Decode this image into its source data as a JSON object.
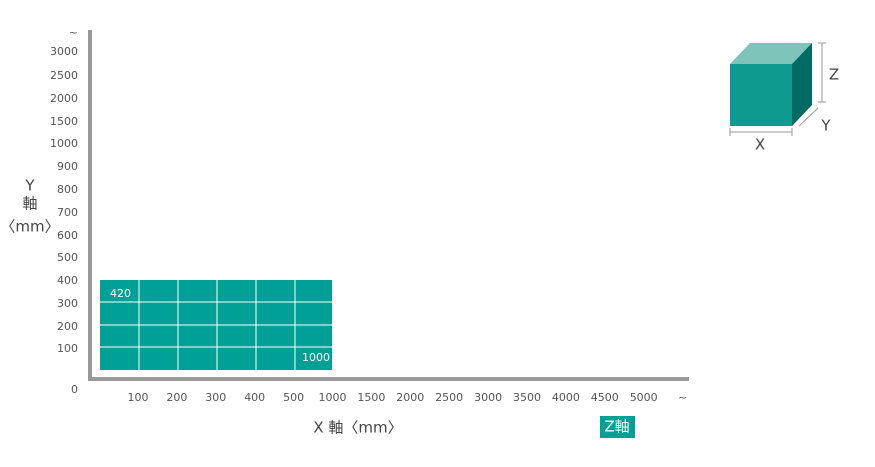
{
  "y_axis": {
    "ticks": [
      "~",
      "3000",
      "2500",
      "2000",
      "1500",
      "1000",
      "900",
      "800",
      "700",
      "600",
      "500",
      "400",
      "300",
      "200",
      "100"
    ],
    "origin": "0",
    "label": [
      "Y",
      "軸",
      "〈mm〉"
    ]
  },
  "x_axis": {
    "ticks": [
      "100",
      "200",
      "300",
      "400",
      "500",
      "1000",
      "1500",
      "2000",
      "2500",
      "3000",
      "3500",
      "4000",
      "4500",
      "5000",
      "~"
    ],
    "label": "X 軸〈mm〉"
  },
  "range": {
    "top_label": "420",
    "bottom_label": "1000"
  },
  "legend": "Z軸",
  "cube": {
    "x": "X",
    "y": "Y",
    "z": "Z"
  }
}
